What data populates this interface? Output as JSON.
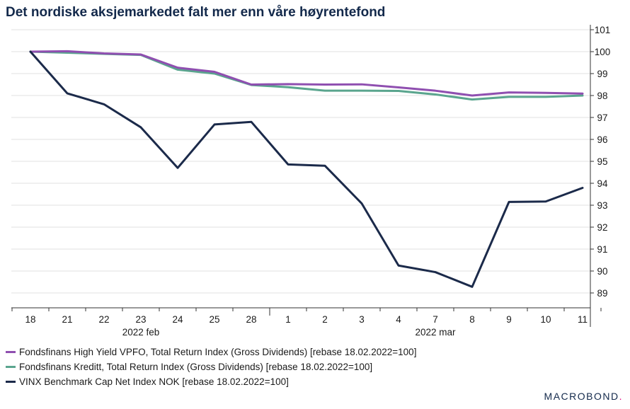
{
  "title": "Det nordiske aksjemarkedet falt mer enn våre høyrentefond",
  "brand": {
    "text": "MACROBOND"
  },
  "colors": {
    "high_yield": "#8f4fb0",
    "kreditt": "#5aa58e",
    "vinx": "#1b2a4a",
    "grid": "#e2e2e2",
    "axis": "#333333"
  },
  "chart_data": {
    "type": "line",
    "title": "Det nordiske aksjemarkedet falt mer enn våre høyrentefond",
    "x": [
      "18",
      "21",
      "22",
      "23",
      "24",
      "25",
      "28",
      "1",
      "2",
      "3",
      "4",
      "7",
      "8",
      "9",
      "10",
      "11"
    ],
    "month_labels": [
      {
        "label": "2022 feb",
        "center_index": 3
      },
      {
        "label": "2022 mar",
        "center_index": 11
      }
    ],
    "y_ticks": [
      89,
      90,
      91,
      92,
      93,
      94,
      95,
      96,
      97,
      98,
      99,
      100,
      101
    ],
    "ylim": [
      88.8,
      101.1
    ],
    "y_axis_side": "right",
    "grid": true,
    "legend_position": "bottom",
    "series": [
      {
        "name": "Fondsfinans High Yield VPFO, Total Return Index (Gross Dividends) [rebase 18.02.2022=100]",
        "color": "#8f4fb0",
        "values": [
          100.0,
          100.02,
          99.92,
          99.87,
          99.27,
          99.08,
          98.5,
          98.52,
          98.5,
          98.51,
          98.37,
          98.22,
          98.0,
          98.14,
          98.12,
          98.09
        ]
      },
      {
        "name": "Fondsfinans Kreditt, Total Return Index (Gross Dividends) [rebase 18.02.2022=100]",
        "color": "#5aa58e",
        "values": [
          100.0,
          99.95,
          99.9,
          99.85,
          99.18,
          99.0,
          98.48,
          98.38,
          98.22,
          98.22,
          98.21,
          98.05,
          97.82,
          97.94,
          97.94,
          98.0
        ]
      },
      {
        "name": "VINX Benchmark Cap Net Index NOK [rebase 18.02.2022=100]",
        "color": "#1b2a4a",
        "values": [
          100.0,
          98.1,
          97.6,
          96.55,
          94.7,
          96.68,
          96.8,
          94.86,
          94.8,
          93.08,
          90.25,
          89.95,
          89.28,
          93.15,
          93.17,
          93.79
        ]
      }
    ]
  }
}
